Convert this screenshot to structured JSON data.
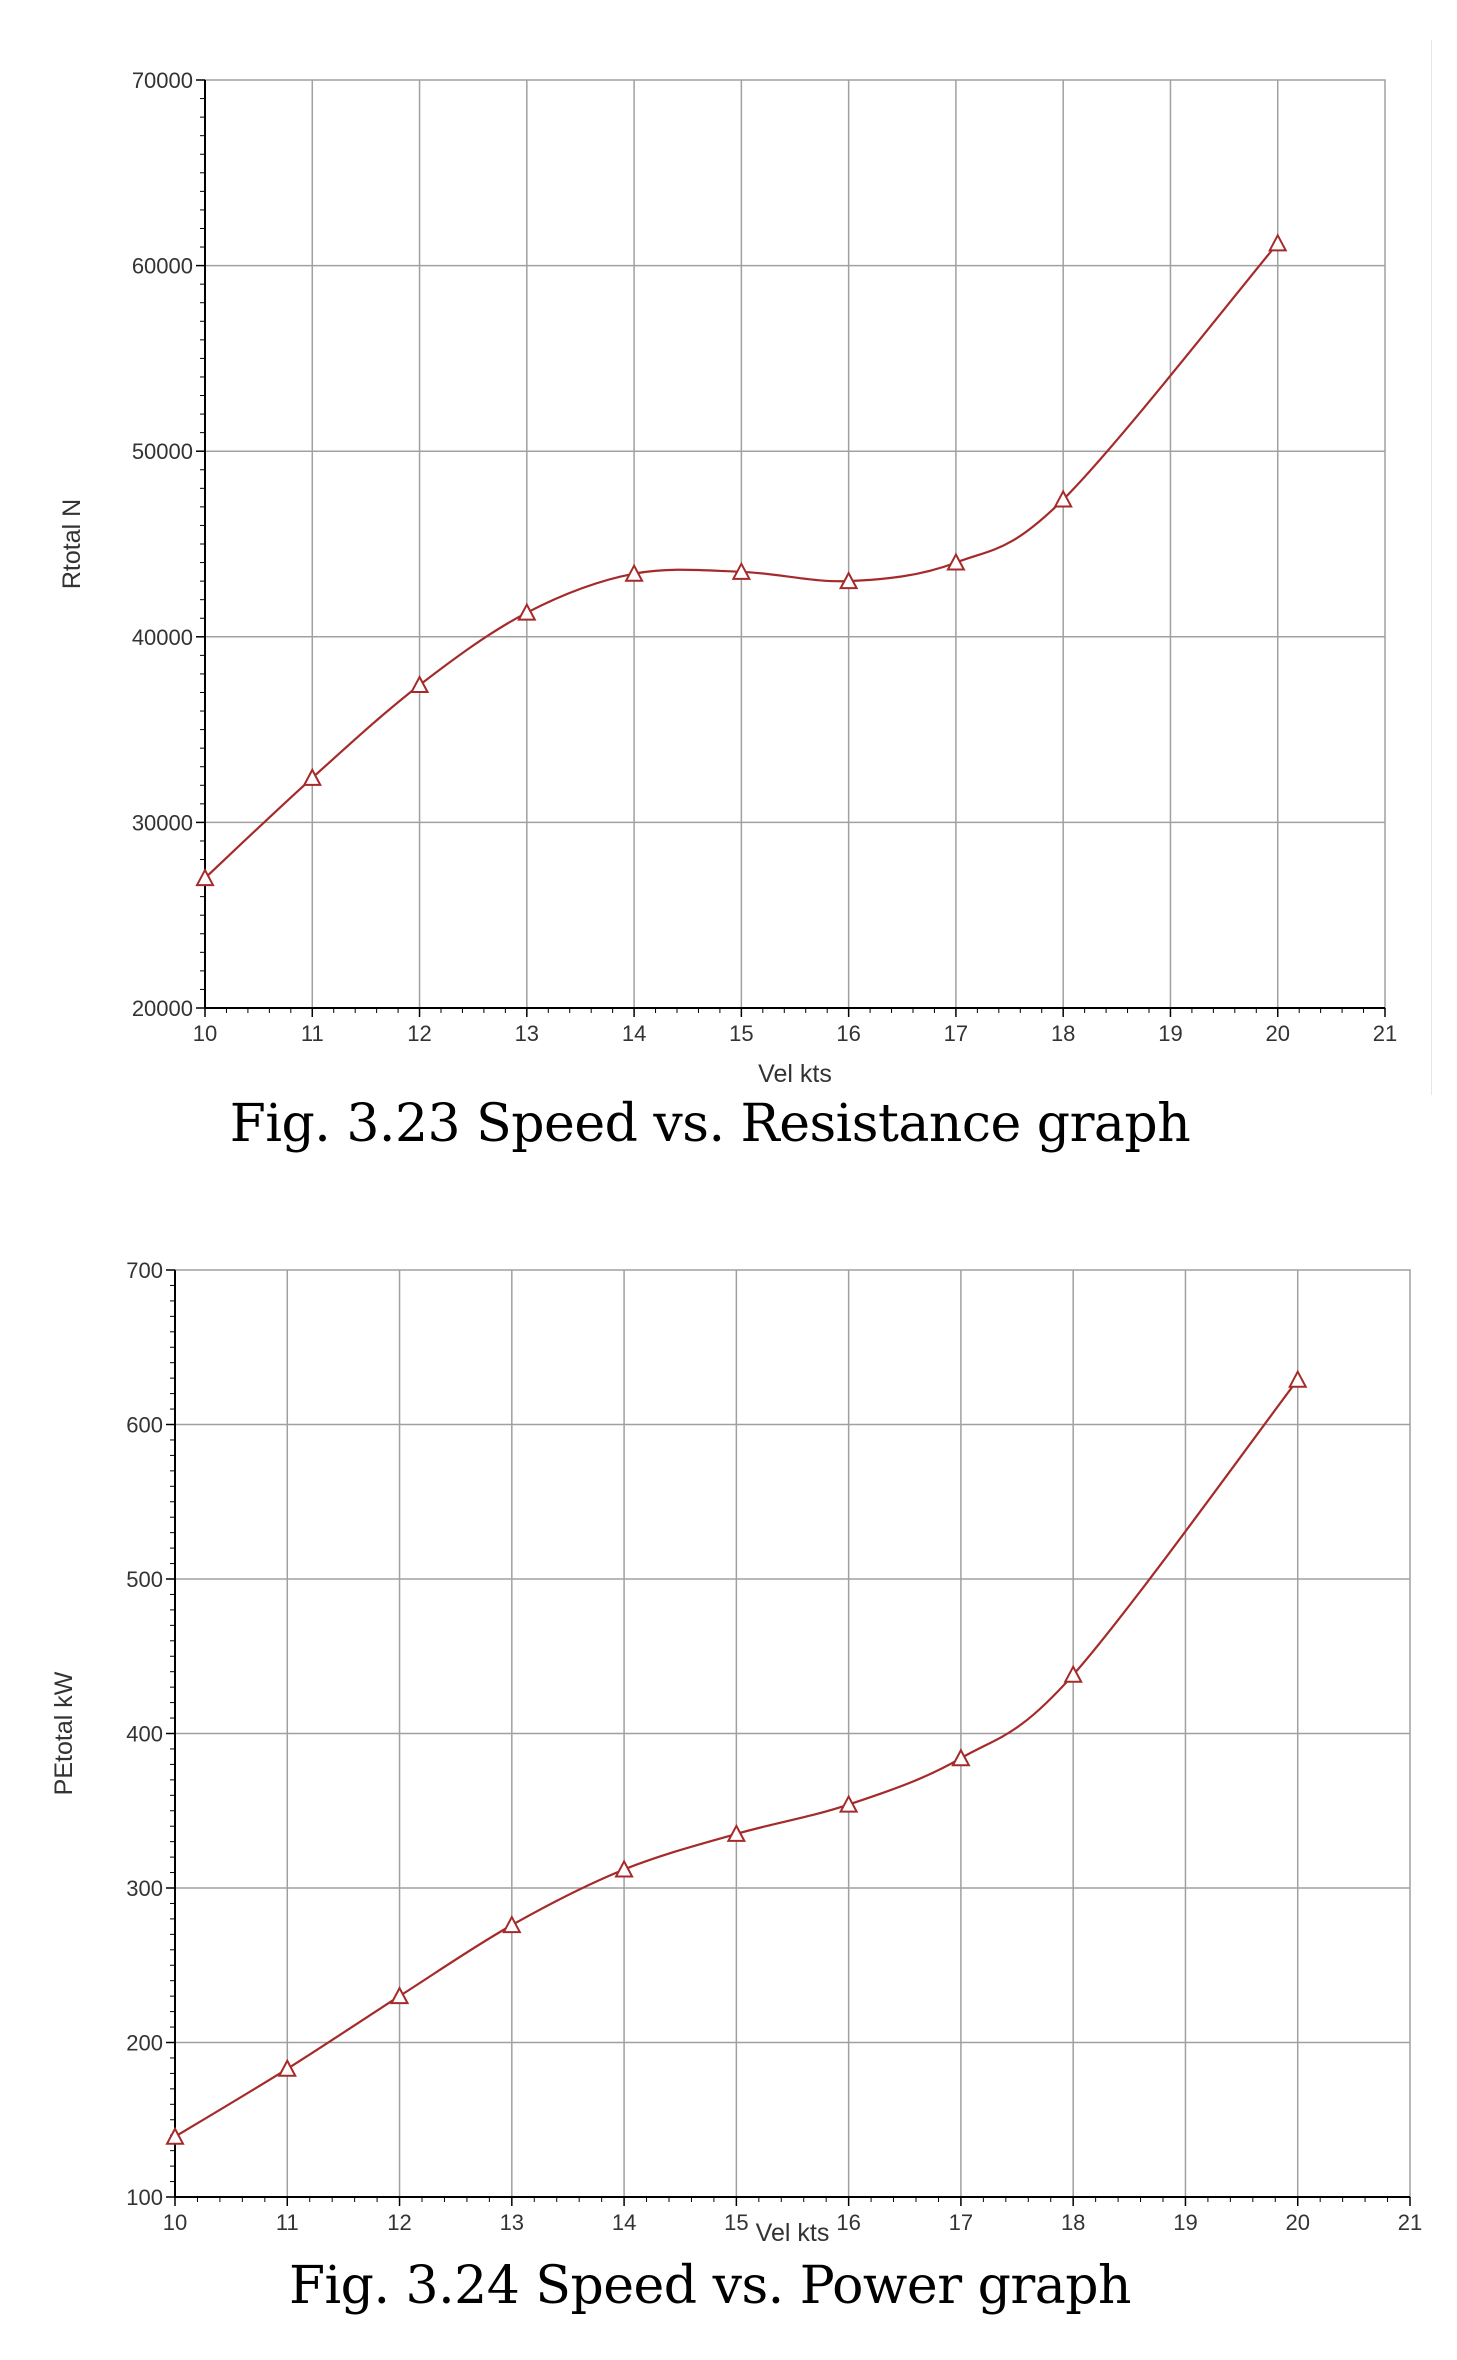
{
  "colors": {
    "series": "#a52a2a",
    "grid": "#a0a0a0",
    "axis": "#000000",
    "text": "#333333"
  },
  "chart_data": [
    {
      "type": "line",
      "marker": "triangle",
      "xlabel": "Vel kts",
      "ylabel": "Rtotal N",
      "xlim": [
        10,
        21
      ],
      "ylim": [
        20000,
        70000
      ],
      "x_ticks": [
        "10",
        "11",
        "12",
        "13",
        "14",
        "15",
        "16",
        "17",
        "18",
        "19",
        "20",
        "21"
      ],
      "y_ticks": [
        "20000",
        "30000",
        "40000",
        "50000",
        "60000",
        "70000"
      ],
      "grid": true,
      "series": [
        {
          "name": "Rtotal N",
          "x": [
            10,
            11,
            12,
            13,
            14,
            15,
            16,
            17,
            18,
            20
          ],
          "values": [
            27000,
            32400,
            37400,
            41300,
            43400,
            43500,
            43000,
            44000,
            47400,
            61200
          ]
        }
      ],
      "caption": "Fig. 3.23 Speed vs. Resistance graph"
    },
    {
      "type": "line",
      "marker": "triangle",
      "xlabel": "Vel kts",
      "ylabel": "PEtotal kW",
      "xlim": [
        10,
        21
      ],
      "ylim": [
        100,
        700
      ],
      "x_ticks": [
        "10",
        "11",
        "12",
        "13",
        "14",
        "15",
        "16",
        "17",
        "18",
        "19",
        "20",
        "21"
      ],
      "y_ticks": [
        "100",
        "200",
        "300",
        "400",
        "500",
        "600",
        "700"
      ],
      "grid": true,
      "series": [
        {
          "name": "PEtotal kW",
          "x": [
            10,
            11,
            12,
            13,
            14,
            15,
            16,
            17,
            18,
            20
          ],
          "values": [
            139,
            183,
            230,
            276,
            312,
            335,
            354,
            384,
            438,
            629
          ]
        }
      ],
      "caption": "Fig. 3.24 Speed vs. Power graph"
    }
  ]
}
